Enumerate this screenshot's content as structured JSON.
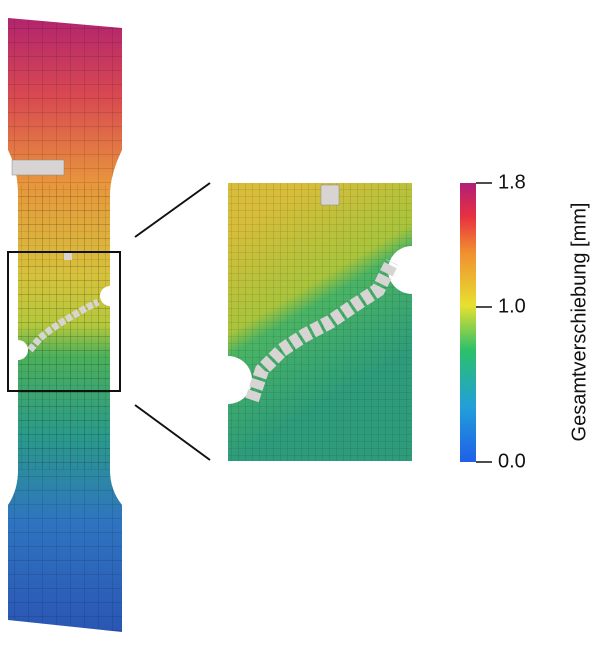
{
  "colorbar": {
    "title": "Gesamtverschiebung [mm]",
    "lim": [
      0,
      1.8
    ],
    "ticks": [
      {
        "value": 0,
        "label": "0.0"
      },
      {
        "value": 1,
        "label": "1.0"
      },
      {
        "value": 1.8,
        "label": "1.8"
      }
    ]
  }
}
